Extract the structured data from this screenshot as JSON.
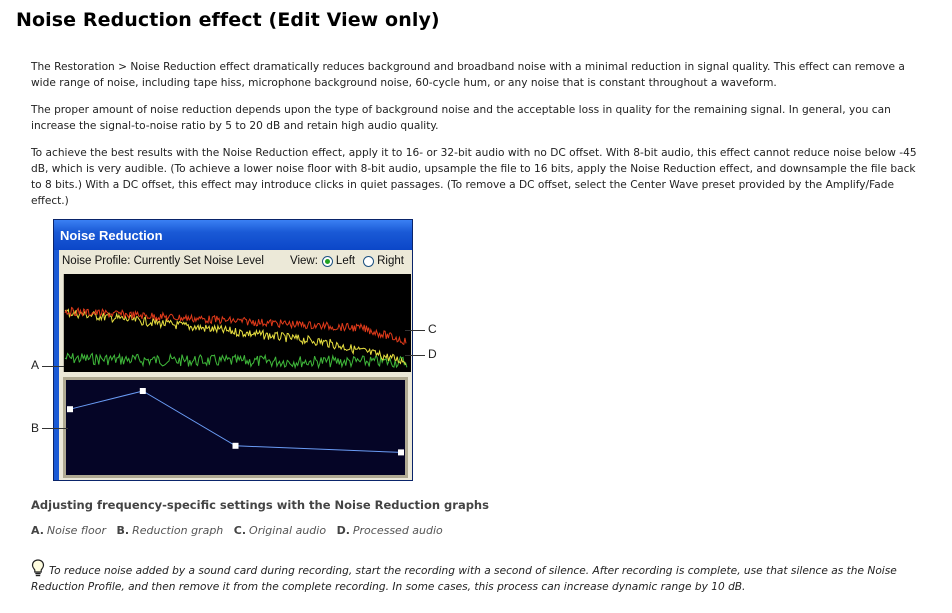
{
  "page": {
    "title": "Noise Reduction effect (Edit View only)",
    "paragraphs": [
      "The Restoration > Noise Reduction effect dramatically reduces background and broadband noise with a minimal reduction in signal quality. This effect can remove a wide range of noise, including tape hiss, microphone background noise, 60-cycle hum, or any noise that is constant throughout a waveform.",
      "The proper amount of noise reduction depends upon the type of background noise and the acceptable loss in quality for the remaining signal. In general, you can increase the signal-to-noise ratio by 5 to 20 dB and retain high audio quality.",
      "To achieve the best results with the Noise Reduction effect, apply it to 16- or 32-bit audio with no DC offset. With 8-bit audio, this effect cannot reduce noise below -45 dB, which is very audible. (To achieve a lower noise floor with 8-bit audio, upsample the file to 16 bits, apply the Noise Reduction effect, and downsample the file back to 8 bits.) With a DC offset, this effect may introduce clicks in quiet passages. (To remove a DC offset, select the Center Wave preset provided by the Amplify/Fade effect.)"
    ],
    "figure_caption": "Adjusting frequency-specific settings with the Noise Reduction graphs",
    "legend": [
      {
        "key": "A.",
        "text": "Noise floor"
      },
      {
        "key": "B.",
        "text": "Reduction graph"
      },
      {
        "key": "C.",
        "text": "Original audio"
      },
      {
        "key": "D.",
        "text": "Processed audio"
      }
    ],
    "tip": "To reduce noise added by a sound card during recording, start the recording with a second of silence. After recording is complete, use that silence as the Noise Reduction Profile, and then remove it from the complete recording. In some cases, this process can increase dynamic range by 10 dB."
  },
  "dialog": {
    "title": "Noise Reduction",
    "profile_label": "Noise Profile: Currently Set Noise Level",
    "view_label": "View:",
    "view_left": "Left",
    "view_right": "Right",
    "view_selected": "Left"
  },
  "callouts": {
    "a": "A",
    "b": "B",
    "c": "C",
    "d": "D"
  },
  "reduction_graph": {
    "points": [
      [
        0,
        0.72
      ],
      [
        0.22,
        0.94
      ],
      [
        0.5,
        0.28
      ],
      [
        1.0,
        0.2
      ]
    ]
  },
  "colors": {
    "title_bar": "#0b46c8",
    "original_audio": "#e03a1a",
    "processed_audio": "#e8e040",
    "noise_floor": "#3fb83a",
    "graph_bg": "#050526",
    "graph_line": "#6a9cf5"
  }
}
